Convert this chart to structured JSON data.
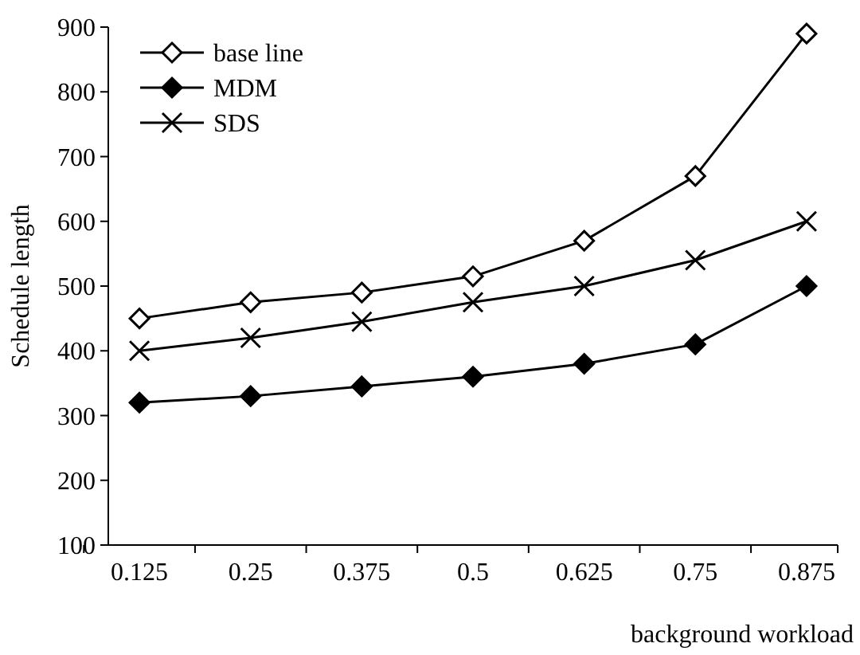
{
  "chart_data": {
    "type": "line",
    "xlabel": "background workload",
    "ylabel": "Schedule length",
    "categories": [
      "0.125",
      "0.25",
      "0.375",
      "0.5",
      "0.625",
      "0.75",
      "0.875"
    ],
    "series": [
      {
        "name": "base line",
        "color": "#000000",
        "marker": "diamond",
        "values": [
          450,
          475,
          490,
          515,
          570,
          670,
          890
        ]
      },
      {
        "name": "MDM",
        "color": "#000000",
        "marker": "diamond",
        "values": [
          320,
          330,
          345,
          360,
          380,
          410,
          500
        ]
      },
      {
        "name": "SDS",
        "color": "#000000",
        "marker": "cross",
        "values": [
          400,
          420,
          445,
          475,
          500,
          540,
          600
        ]
      }
    ],
    "ylim": [
      100,
      900
    ],
    "yticks": [
      100,
      200,
      300,
      400,
      500,
      600,
      700,
      800,
      900
    ],
    "grid": false,
    "legend": "top left",
    "line_style": "solid"
  }
}
